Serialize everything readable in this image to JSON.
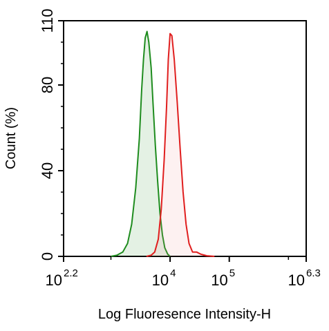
{
  "chart_data": {
    "type": "area",
    "xlabel": "Log Fluoresence Intensity-H",
    "ylabel": "Count  (%)",
    "x_scale": "log",
    "xlim_log10": [
      2.2,
      6.3
    ],
    "ylim": [
      0,
      110
    ],
    "x_ticks": [
      {
        "base": "10",
        "exp": "2.2",
        "log10": 2.2
      },
      {
        "base": "10",
        "exp": "4",
        "log10": 4
      },
      {
        "base": "10",
        "exp": "5",
        "log10": 5
      },
      {
        "base": "10",
        "exp": "6.3",
        "log10": 6.3
      }
    ],
    "y_ticks": [
      {
        "label": "0",
        "value": 0
      },
      {
        "label": "40",
        "value": 40
      },
      {
        "label": "80",
        "value": 80
      },
      {
        "label": "110",
        "value": 110
      }
    ],
    "grid": false,
    "series": [
      {
        "color": "#1e8c1e",
        "fill": "#1e8c1e",
        "points": [
          [
            3.0,
            0
          ],
          [
            3.1,
            0.5
          ],
          [
            3.2,
            2
          ],
          [
            3.28,
            6
          ],
          [
            3.35,
            15
          ],
          [
            3.42,
            32
          ],
          [
            3.48,
            55
          ],
          [
            3.52,
            78
          ],
          [
            3.55,
            92
          ],
          [
            3.58,
            102
          ],
          [
            3.61,
            105
          ],
          [
            3.64,
            100
          ],
          [
            3.68,
            88
          ],
          [
            3.71,
            72
          ],
          [
            3.75,
            52
          ],
          [
            3.79,
            35
          ],
          [
            3.83,
            20
          ],
          [
            3.87,
            10
          ],
          [
            3.91,
            4
          ],
          [
            3.96,
            1
          ],
          [
            4.0,
            0
          ]
        ]
      },
      {
        "color": "#e01e1e",
        "fill": "#f08a8a",
        "points": [
          [
            3.6,
            0
          ],
          [
            3.68,
            0.5
          ],
          [
            3.74,
            2
          ],
          [
            3.8,
            8
          ],
          [
            3.85,
            22
          ],
          [
            3.9,
            45
          ],
          [
            3.94,
            70
          ],
          [
            3.97,
            92
          ],
          [
            4.0,
            104
          ],
          [
            4.03,
            103
          ],
          [
            4.07,
            92
          ],
          [
            4.12,
            72
          ],
          [
            4.17,
            50
          ],
          [
            4.22,
            30
          ],
          [
            4.27,
            15
          ],
          [
            4.32,
            6
          ],
          [
            4.38,
            2
          ],
          [
            4.45,
            2
          ],
          [
            4.52,
            1
          ],
          [
            4.62,
            0.3
          ],
          [
            4.75,
            0
          ]
        ]
      }
    ]
  }
}
